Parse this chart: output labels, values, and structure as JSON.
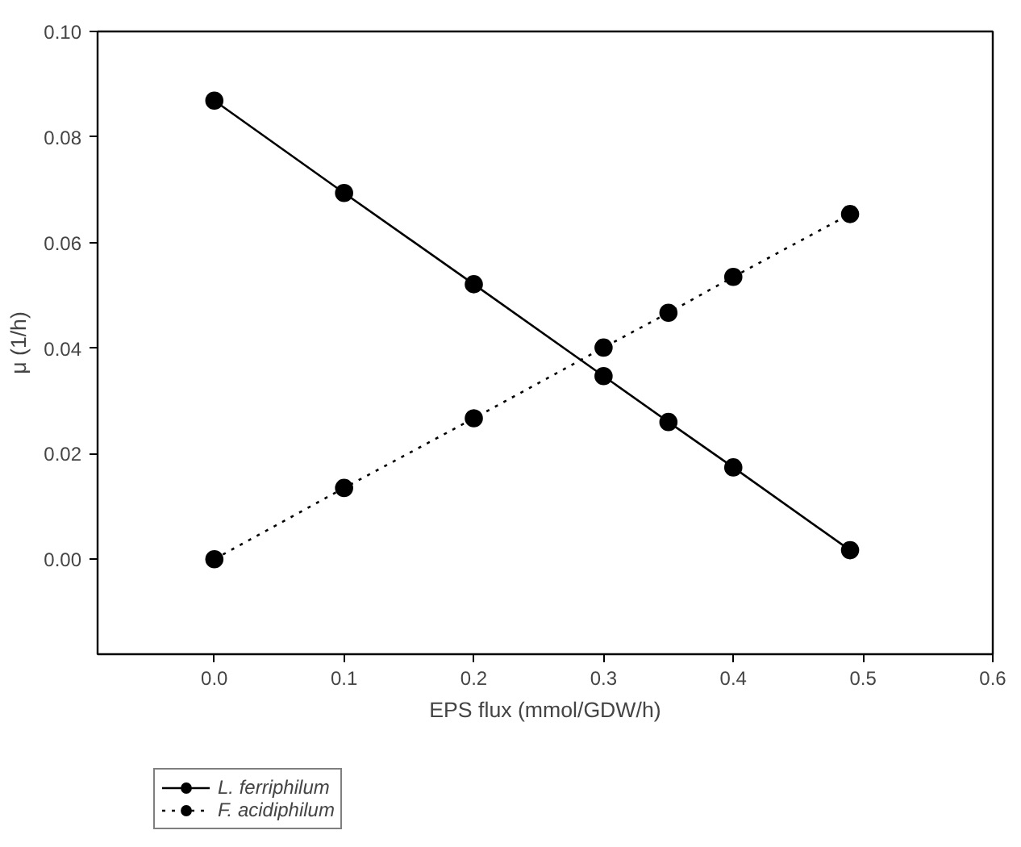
{
  "chart_data": {
    "type": "line",
    "xlabel": "EPS flux (mmol/GDW/h)",
    "ylabel": "μ (1/h)",
    "xlim": [
      -0.09,
      0.6
    ],
    "xticks": [
      {
        "value": 0,
        "label": "0.0"
      },
      0.1,
      0.2,
      0.3,
      0.4,
      0.5,
      0.6
    ],
    "ylim": [
      -0.018,
      0.1
    ],
    "yticks": [
      {
        "value": 0,
        "label": "0.00"
      },
      {
        "value": 0.02,
        "label": "0.02"
      },
      {
        "value": 0.04,
        "label": "0.04"
      },
      {
        "value": 0.06,
        "label": "0.06"
      },
      {
        "value": 0.08,
        "label": "0.08"
      },
      {
        "value": 0.1,
        "label": "0.10"
      }
    ],
    "grid": false,
    "legend": "bottom left",
    "marker": "circle",
    "series": [
      {
        "name": "L. ferriphilum",
        "color": "#000000",
        "line_style": "solid",
        "x": [
          0,
          0.1,
          0.2,
          0.3,
          0.35,
          0.4,
          0.49
        ],
        "values": [
          0.0869,
          0.0694,
          0.0521,
          0.0347,
          0.026,
          0.0174,
          0.0017
        ]
      },
      {
        "name": "F. acidiphilum",
        "color": "#000000",
        "line_style": "dotted",
        "x": [
          0,
          0.1,
          0.2,
          0.3,
          0.35,
          0.4,
          0.49
        ],
        "values": [
          0,
          0.0135,
          0.0267,
          0.0401,
          0.0467,
          0.0535,
          0.0654
        ]
      }
    ]
  }
}
